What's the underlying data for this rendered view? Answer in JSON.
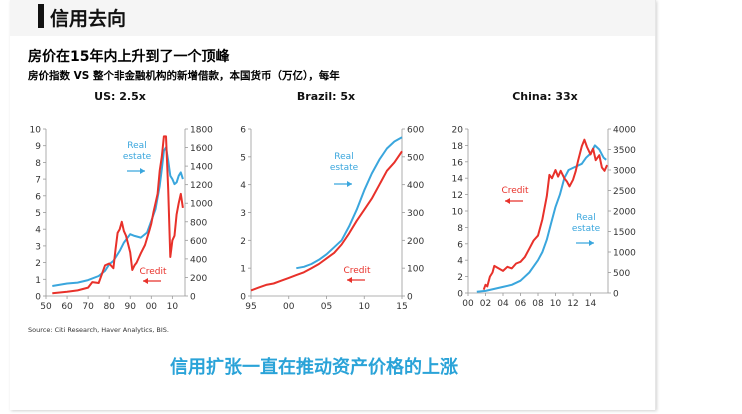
{
  "header": {
    "title": "信用去向"
  },
  "subtitle": "房价在15年内上升到了一个顶峰",
  "description": "房价指数 VS 整个非金融机构的新增借款，本国货币（万亿），每年",
  "source": "Source: Citi Research, Haver Analytics, BIS.",
  "bottom_caption": "信用扩张一直在推动资产价格的上涨",
  "colors": {
    "real_estate": "#3aa6dd",
    "credit": "#e8312a",
    "caption": "#2aa3d8"
  },
  "chart_data": [
    {
      "type": "line",
      "title": "US: 2.5x",
      "x_ticks": [
        "50",
        "60",
        "70",
        "80",
        "90",
        "00",
        "10"
      ],
      "xlim": [
        1950,
        2016
      ],
      "left_ticks": [
        "10",
        "9",
        "8",
        "7",
        "6",
        "5",
        "4",
        "3",
        "2",
        "1",
        "0"
      ],
      "left_lim": [
        0,
        10
      ],
      "right_ticks": [
        "1800",
        "1600",
        "1400",
        "1200",
        "1000",
        "800",
        "600",
        "400",
        "200",
        "0"
      ],
      "right_lim": [
        0,
        1800
      ],
      "grid": false,
      "annotations": [
        {
          "text": [
            "Real",
            "estate"
          ],
          "color": "#3aa6dd",
          "arrow": "right"
        },
        {
          "text": [
            "Credit"
          ],
          "color": "#e8312a",
          "arrow": "left"
        }
      ],
      "series": [
        {
          "name": "Real estate",
          "axis": "left",
          "color": "#3aa6dd",
          "x": [
            1953,
            1960,
            1965,
            1970,
            1975,
            1978,
            1980,
            1982,
            1985,
            1987,
            1990,
            1992,
            1995,
            1998,
            2000,
            2002,
            2004,
            2005,
            2006,
            2007,
            2008,
            2009,
            2010,
            2011,
            2012,
            2013,
            2014,
            2015
          ],
          "y": [
            0.6,
            0.75,
            0.8,
            0.95,
            1.2,
            1.5,
            1.9,
            2.1,
            2.7,
            3.2,
            3.7,
            3.6,
            3.5,
            3.8,
            4.5,
            5.2,
            6.6,
            7.6,
            8.7,
            8.9,
            8.1,
            7.2,
            7.0,
            6.7,
            6.8,
            7.2,
            7.4,
            7.0
          ]
        },
        {
          "name": "Credit",
          "axis": "right",
          "color": "#e8312a",
          "x": [
            1953,
            1960,
            1965,
            1970,
            1972,
            1975,
            1978,
            1980,
            1982,
            1983,
            1984,
            1985,
            1986,
            1987,
            1988,
            1989,
            1990,
            1991,
            1992,
            1993,
            1995,
            1997,
            1999,
            2000,
            2001,
            2002,
            2003,
            2004,
            2005,
            2006,
            2007,
            2008,
            2009,
            2010,
            2011,
            2012,
            2013,
            2014,
            2015
          ],
          "y": [
            30,
            45,
            60,
            90,
            150,
            140,
            330,
            350,
            300,
            500,
            680,
            720,
            800,
            700,
            650,
            560,
            470,
            280,
            330,
            360,
            460,
            550,
            700,
            780,
            900,
            1000,
            1100,
            1350,
            1500,
            1720,
            1720,
            1150,
            420,
            600,
            650,
            880,
            1000,
            1100,
            950
          ]
        }
      ]
    },
    {
      "type": "line",
      "title": "Brazil: 5x",
      "x_ticks": [
        "95",
        "00",
        "05",
        "10",
        "15"
      ],
      "xlim": [
        1995,
        2015
      ],
      "left_ticks": [
        "6",
        "5",
        "4",
        "3",
        "2",
        "1",
        "0"
      ],
      "left_lim": [
        0,
        6
      ],
      "right_ticks": [
        "600",
        "500",
        "400",
        "300",
        "200",
        "100",
        "0"
      ],
      "right_lim": [
        0,
        600
      ],
      "grid": false,
      "annotations": [
        {
          "text": [
            "Real",
            "estate"
          ],
          "color": "#3aa6dd",
          "arrow": "right"
        },
        {
          "text": [
            "Credit"
          ],
          "color": "#e8312a",
          "arrow": "left"
        }
      ],
      "series": [
        {
          "name": "Real estate",
          "axis": "left",
          "color": "#3aa6dd",
          "x": [
            2001,
            2002,
            2003,
            2004,
            2005,
            2006,
            2007,
            2008,
            2009,
            2010,
            2011,
            2012,
            2013,
            2014,
            2015
          ],
          "y": [
            1.0,
            1.05,
            1.15,
            1.3,
            1.5,
            1.75,
            2.0,
            2.5,
            3.1,
            3.8,
            4.4,
            4.9,
            5.3,
            5.55,
            5.7
          ]
        },
        {
          "name": "Credit",
          "axis": "right",
          "color": "#e8312a",
          "x": [
            1995,
            1996,
            1997,
            1998,
            1999,
            2000,
            2001,
            2002,
            2003,
            2004,
            2005,
            2006,
            2007,
            2008,
            2009,
            2010,
            2011,
            2012,
            2013,
            2014,
            2015
          ],
          "y": [
            20,
            30,
            40,
            45,
            55,
            65,
            75,
            85,
            100,
            115,
            135,
            155,
            185,
            225,
            270,
            310,
            350,
            400,
            450,
            480,
            520
          ]
        }
      ]
    },
    {
      "type": "line",
      "title": "China: 33x",
      "x_ticks": [
        "00",
        "02",
        "04",
        "06",
        "08",
        "10",
        "12",
        "14"
      ],
      "xlim": [
        2000,
        2016
      ],
      "left_ticks": [
        "20",
        "18",
        "16",
        "14",
        "12",
        "10",
        "8",
        "6",
        "4",
        "2",
        "0"
      ],
      "left_lim": [
        0,
        20
      ],
      "right_ticks": [
        "4000",
        "3500",
        "3000",
        "2500",
        "2000",
        "1500",
        "1000",
        "500",
        "0"
      ],
      "right_lim": [
        0,
        4000
      ],
      "grid": false,
      "annotations": [
        {
          "text": [
            "Credit"
          ],
          "color": "#e8312a",
          "arrow": "left"
        },
        {
          "text": [
            "Real",
            "estate"
          ],
          "color": "#3aa6dd",
          "arrow": "right"
        }
      ],
      "series": [
        {
          "name": "Real estate",
          "axis": "right",
          "color": "#3aa6dd",
          "x": [
            2001,
            2002,
            2003,
            2004,
            2005,
            2006,
            2007,
            2007.5,
            2008,
            2008.5,
            2009,
            2009.5,
            2010,
            2010.5,
            2011,
            2011.5,
            2012,
            2012.5,
            2013,
            2013.5,
            2014,
            2014.5,
            2015,
            2015.5,
            2015.8
          ],
          "y": [
            30,
            50,
            100,
            150,
            200,
            300,
            500,
            650,
            800,
            1000,
            1300,
            1700,
            2100,
            2400,
            2800,
            3000,
            3050,
            3100,
            3150,
            3300,
            3400,
            3600,
            3500,
            3300,
            3250
          ]
        },
        {
          "name": "Credit",
          "axis": "left",
          "color": "#e8312a",
          "x": [
            2001.8,
            2002,
            2002.2,
            2002.5,
            2002.8,
            2003,
            2003.5,
            2004,
            2004.5,
            2005,
            2005.5,
            2006,
            2006.5,
            2007,
            2007.5,
            2008,
            2008.5,
            2009,
            2009.3,
            2009.6,
            2010,
            2010.3,
            2010.6,
            2011,
            2011.3,
            2011.6,
            2012,
            2012.3,
            2012.6,
            2013,
            2013.3,
            2013.6,
            2014,
            2014.3,
            2014.6,
            2015,
            2015.3,
            2015.6,
            2015.9
          ],
          "y": [
            0.4,
            1.0,
            0.8,
            2.0,
            2.5,
            3.3,
            3.0,
            2.7,
            3.2,
            3.0,
            3.6,
            3.8,
            4.4,
            5.4,
            6.4,
            7.0,
            9.0,
            11.8,
            14.4,
            14.0,
            15.0,
            14.2,
            14.9,
            14.0,
            13.6,
            13.0,
            13.8,
            14.8,
            16.2,
            17.9,
            18.7,
            17.8,
            16.9,
            17.6,
            16.2,
            16.8,
            15.3,
            14.9,
            15.6
          ]
        }
      ]
    }
  ]
}
